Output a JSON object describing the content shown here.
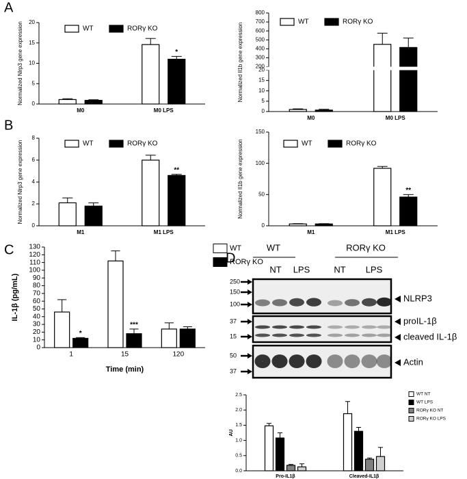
{
  "panel_labels": [
    "A",
    "B",
    "C",
    "D"
  ],
  "chart_data": [
    {
      "type": "bar",
      "y_label": "Normalized Nlrp3 gene expression",
      "categories": [
        "M0",
        "M0 LPS"
      ],
      "ylim": [
        0,
        20
      ],
      "yticks": [
        0,
        5,
        10,
        15,
        20
      ],
      "legend": "top",
      "series": [
        {
          "name": "WT",
          "color": "#ffffff",
          "values": [
            1.1,
            14.6
          ],
          "errors": [
            0.2,
            1.5
          ]
        },
        {
          "name": "RORγ KO",
          "color": "#000000",
          "values": [
            0.9,
            11.0
          ],
          "errors": [
            0.15,
            0.7
          ]
        }
      ],
      "annotations": [
        {
          "text": "*",
          "series": 1,
          "category": 1
        }
      ]
    },
    {
      "type": "bar",
      "y_label": "Normalized Il1b gene expression",
      "categories": [
        "M0",
        "M0 LPS"
      ],
      "ylim": [
        0,
        800
      ],
      "axis_break": [
        20,
        200
      ],
      "yticks": [
        0,
        5,
        10,
        15,
        20,
        200,
        300,
        400,
        500,
        600,
        700,
        800
      ],
      "legend": "top",
      "series": [
        {
          "name": "WT",
          "color": "#ffffff",
          "values": [
            1.0,
            450
          ],
          "errors": [
            0.3,
            125
          ]
        },
        {
          "name": "RORγ KO",
          "color": "#000000",
          "values": [
            0.7,
            415
          ],
          "errors": [
            0.4,
            105
          ]
        }
      ]
    },
    {
      "type": "bar",
      "y_label": "Normalized Nlrp3 gene expression",
      "categories": [
        "M1",
        "M1 LPS"
      ],
      "ylim": [
        0,
        8
      ],
      "yticks": [
        0,
        2,
        4,
        6,
        8
      ],
      "legend": "top",
      "series": [
        {
          "name": "WT",
          "color": "#ffffff",
          "values": [
            2.1,
            6.0
          ],
          "errors": [
            0.45,
            0.45
          ]
        },
        {
          "name": "RORγ KO",
          "color": "#000000",
          "values": [
            1.8,
            4.6
          ],
          "errors": [
            0.3,
            0.1
          ]
        }
      ],
      "annotations": [
        {
          "text": "**",
          "series": 1,
          "category": 1
        }
      ]
    },
    {
      "type": "bar",
      "y_label": "Normalized Il1b gene expression",
      "categories": [
        "M1",
        "M1 LPS"
      ],
      "ylim": [
        0,
        150
      ],
      "yticks": [
        0,
        50,
        100,
        150
      ],
      "legend": "top",
      "series": [
        {
          "name": "WT",
          "color": "#ffffff",
          "values": [
            3,
            92
          ],
          "errors": [
            0.5,
            3
          ]
        },
        {
          "name": "RORγ KO",
          "color": "#000000",
          "values": [
            3,
            46
          ],
          "errors": [
            0.5,
            4
          ]
        }
      ],
      "annotations": [
        {
          "text": "**",
          "series": 1,
          "category": 1
        }
      ]
    },
    {
      "type": "bar",
      "y_label": "IL-1β (pg/mL)",
      "x_label": "Time (min)",
      "categories": [
        "1",
        "15",
        "120"
      ],
      "ylim": [
        0,
        130
      ],
      "yticks": [
        0,
        10,
        20,
        30,
        40,
        50,
        60,
        70,
        80,
        90,
        100,
        110,
        120,
        130
      ],
      "legend": "right",
      "series": [
        {
          "name": "WT",
          "color": "#ffffff",
          "values": [
            46,
            112,
            24
          ],
          "errors": [
            16,
            13,
            8
          ]
        },
        {
          "name": "RORγ KO",
          "color": "#000000",
          "values": [
            12,
            18,
            24
          ],
          "errors": [
            1,
            6,
            3
          ]
        }
      ],
      "annotations": [
        {
          "text": "*",
          "series": 1,
          "category": 0
        },
        {
          "text": "***",
          "series": 1,
          "category": 1
        }
      ]
    },
    {
      "type": "bar",
      "y_label": "AU",
      "categories": [
        "Pro-IL1β",
        "Cleaved-IL1β"
      ],
      "ylim": [
        0,
        2.5
      ],
      "yticks": [
        {
          "value": 0,
          "label": "0.0"
        },
        0.5,
        {
          "value": 1,
          "label": "1.0"
        },
        1.5,
        {
          "value": 2,
          "label": "2.0"
        },
        2.5
      ],
      "legend": "right",
      "series": [
        {
          "name": "WT NT",
          "color": "#ffffff",
          "values": [
            1.48,
            1.88
          ],
          "errors": [
            0.08,
            0.4
          ]
        },
        {
          "name": "WT LPS",
          "color": "#000000",
          "values": [
            1.08,
            1.3
          ],
          "errors": [
            0.17,
            0.13
          ]
        },
        {
          "name": "RORγ KO NT",
          "color": "#808080",
          "values": [
            0.18,
            0.38
          ],
          "errors": [
            0.03,
            0.04
          ]
        },
        {
          "name": "RORγ KO LPS",
          "color": "#d0d0d0",
          "values": [
            0.13,
            0.47
          ],
          "errors": [
            0.1,
            0.3
          ]
        }
      ]
    }
  ],
  "blot": {
    "groups": [
      "WT",
      "RORγ KO"
    ],
    "lanes": [
      "NT",
      "LPS",
      "NT",
      "LPS"
    ],
    "markers": [
      "250",
      "150",
      "100",
      "37",
      "15",
      "50",
      "37"
    ],
    "bands": [
      "NLRP3",
      "proIL-1β",
      "cleaved IL-1β",
      "Actin"
    ]
  }
}
